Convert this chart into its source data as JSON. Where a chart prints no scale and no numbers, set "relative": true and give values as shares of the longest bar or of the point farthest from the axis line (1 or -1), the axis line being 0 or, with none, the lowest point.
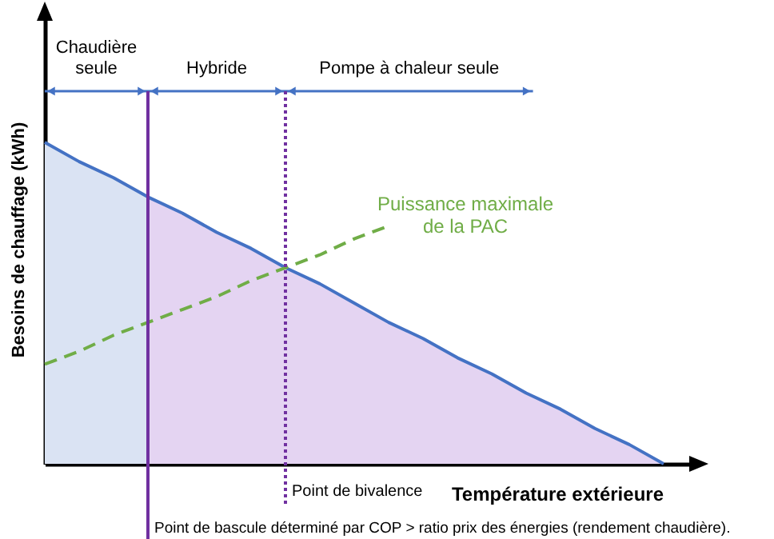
{
  "chart_data": {
    "type": "line",
    "relative": true,
    "tick_labels": false,
    "xlabel": "Température extérieure",
    "ylabel": "Besoins de chauffage (kWh)",
    "categories": [
      null,
      null,
      null,
      null,
      null,
      null,
      null,
      null,
      null,
      null,
      null,
      null,
      null,
      null,
      null,
      null,
      null,
      null,
      null
    ],
    "series": [
      {
        "type": "area",
        "color": "#dae3f3",
        "values": [
          1,
          0.94,
          0.89,
          0.83,
          null,
          null,
          null,
          null,
          null,
          null,
          null,
          null,
          null,
          null,
          null,
          null,
          null,
          null,
          null
        ]
      },
      {
        "type": "area",
        "color": "#e4d4f2",
        "values": [
          null,
          null,
          null,
          0.83,
          0.78,
          0.72,
          0.67,
          0.61,
          0.56,
          0.5,
          0.44,
          0.39,
          0.33,
          0.28,
          0.22,
          0.17,
          0.11,
          0.06,
          0
        ]
      },
      {
        "color": "#4472c4",
        "values": [
          1,
          0.94,
          0.89,
          0.83,
          0.78,
          0.72,
          0.67,
          0.61,
          0.56,
          0.5,
          0.44,
          0.39,
          0.33,
          0.28,
          0.22,
          0.17,
          0.11,
          0.06,
          0
        ]
      },
      {
        "name": "Puissance maximale\nde la PAC",
        "color": "#70ad47",
        "line_style": "dashed",
        "values": [
          0.31,
          0.35,
          0.4,
          0.44,
          0.48,
          0.52,
          0.57,
          0.61,
          0.65,
          0.7,
          0.74,
          null,
          null,
          null,
          null,
          null,
          null,
          null,
          null
        ]
      }
    ],
    "annotations": [
      "Chaudière\nseule",
      "Hybride",
      "Pompe à chaleur seule",
      "Point de bivalence",
      "Point de bascule déterminé par COP > ratio prix des énergies (rendement chaudière)."
    ]
  }
}
